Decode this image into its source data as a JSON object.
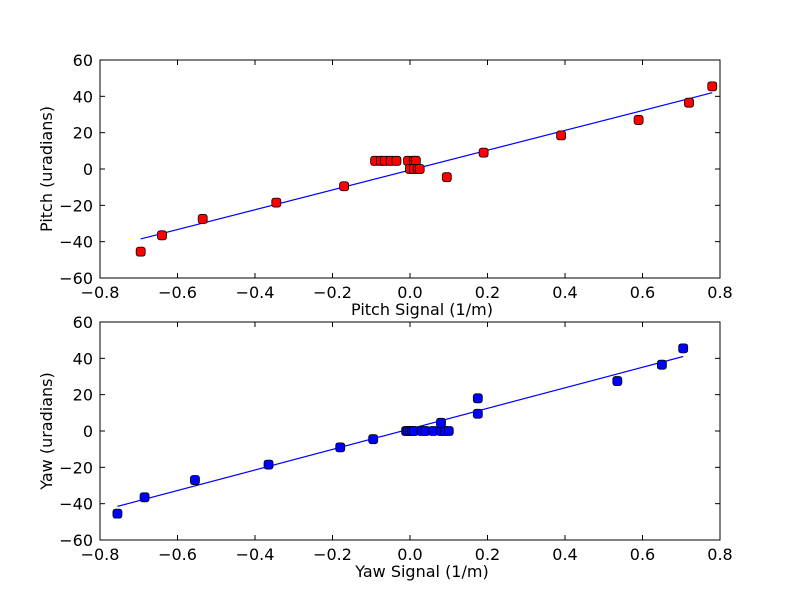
{
  "chart_data": [
    {
      "type": "scatter",
      "xlabel": "Pitch Signal (1/m)",
      "ylabel": "Pitch (uradians)",
      "xlim": [
        -0.8,
        0.8
      ],
      "ylim": [
        -60,
        60
      ],
      "xticks": [
        "−0.8",
        "−0.6",
        "−0.4",
        "−0.2",
        "0.0",
        "0.2",
        "0.4",
        "0.6",
        "0.8"
      ],
      "yticks": [
        "−60",
        "−40",
        "−20",
        "0",
        "20",
        "40",
        "60"
      ],
      "grid": false,
      "marker_color": "#ff0000",
      "line_color": "#0000ff",
      "points": [
        [
          -0.695,
          -45.5
        ],
        [
          -0.64,
          -36.5
        ],
        [
          -0.535,
          -27.5
        ],
        [
          -0.345,
          -18.5
        ],
        [
          -0.17,
          -9.5
        ],
        [
          -0.09,
          4.5
        ],
        [
          -0.075,
          4.5
        ],
        [
          -0.065,
          4.5
        ],
        [
          -0.05,
          4.5
        ],
        [
          -0.035,
          4.5
        ],
        [
          -0.005,
          4.5
        ],
        [
          0.01,
          4.5
        ],
        [
          0.015,
          4.5
        ],
        [
          0.0,
          0.0
        ],
        [
          0.01,
          0.0
        ],
        [
          0.02,
          0.0
        ],
        [
          0.025,
          0.0
        ],
        [
          0.095,
          -4.5
        ],
        [
          0.19,
          9.0
        ],
        [
          0.39,
          18.5
        ],
        [
          0.59,
          27.0
        ],
        [
          0.72,
          36.5
        ],
        [
          0.78,
          45.5
        ]
      ],
      "fit_line": {
        "x": [
          -0.695,
          0.78
        ],
        "y": [
          -38.5,
          42.0
        ]
      }
    },
    {
      "type": "scatter",
      "xlabel": "Yaw Signal (1/m)",
      "ylabel": "Yaw (uradians)",
      "xlim": [
        -0.8,
        0.8
      ],
      "ylim": [
        -60,
        60
      ],
      "xticks": [
        "−0.8",
        "−0.6",
        "−0.4",
        "−0.2",
        "0.0",
        "0.2",
        "0.4",
        "0.6",
        "0.8"
      ],
      "yticks": [
        "−60",
        "−40",
        "−20",
        "0",
        "20",
        "40",
        "60"
      ],
      "grid": false,
      "marker_color": "#0000ff",
      "line_color": "#0000ff",
      "points": [
        [
          -0.755,
          -45.5
        ],
        [
          -0.685,
          -36.5
        ],
        [
          -0.555,
          -27.0
        ],
        [
          -0.365,
          -18.5
        ],
        [
          -0.18,
          -9.0
        ],
        [
          -0.095,
          -4.5
        ],
        [
          -0.01,
          0.0
        ],
        [
          -0.005,
          0.0
        ],
        [
          0.0,
          0.0
        ],
        [
          0.005,
          0.0
        ],
        [
          0.01,
          0.0
        ],
        [
          0.03,
          0.0
        ],
        [
          0.04,
          0.0
        ],
        [
          0.06,
          0.0
        ],
        [
          0.08,
          0.0
        ],
        [
          0.09,
          0.0
        ],
        [
          0.1,
          0.0
        ],
        [
          0.08,
          4.5
        ],
        [
          0.175,
          9.5
        ],
        [
          0.175,
          18.0
        ],
        [
          0.535,
          27.5
        ],
        [
          0.65,
          36.5
        ],
        [
          0.705,
          45.5
        ]
      ],
      "fit_line": {
        "x": [
          -0.755,
          0.705
        ],
        "y": [
          -41.5,
          41.0
        ]
      }
    }
  ]
}
